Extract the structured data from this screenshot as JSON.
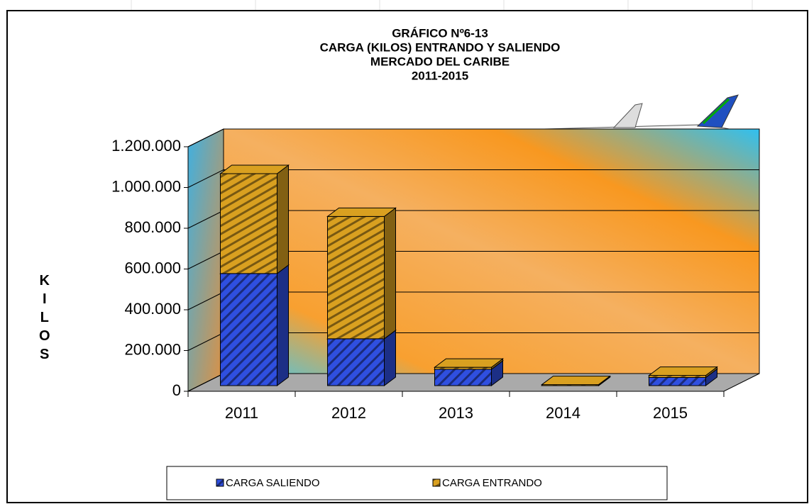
{
  "chart_data": {
    "type": "bar3d_stacked",
    "title": [
      "GRÁFICO Nº6-13",
      "CARGA (KILOS) ENTRANDO  Y SALIENDO",
      "MERCADO DEL CARIBE",
      "2011-2015"
    ],
    "y_label": "KILOS",
    "categories": [
      "2011",
      "2012",
      "2013",
      "2014",
      "2015"
    ],
    "series": [
      {
        "name": "CARGA SALIENDO",
        "color": "#2f4fe0",
        "values": [
          550000,
          230000,
          80000,
          0,
          40000
        ]
      },
      {
        "name": "CARGA ENTRANDO",
        "color": "#d9a020",
        "values": [
          490000,
          600000,
          10000,
          5000,
          10000
        ]
      }
    ],
    "ylim": [
      0,
      1200000
    ],
    "yticks": [
      {
        "value": 0,
        "label": "0"
      },
      {
        "value": 200000,
        "label": "200.000"
      },
      {
        "value": 400000,
        "label": "400.000"
      },
      {
        "value": 600000,
        "label": "600.000"
      },
      {
        "value": 800000,
        "label": "800.000"
      },
      {
        "value": 1000000,
        "label": "1.000.000"
      },
      {
        "value": 1200000,
        "label": "1.200.000"
      }
    ],
    "grid": true,
    "legend": "bottom"
  }
}
